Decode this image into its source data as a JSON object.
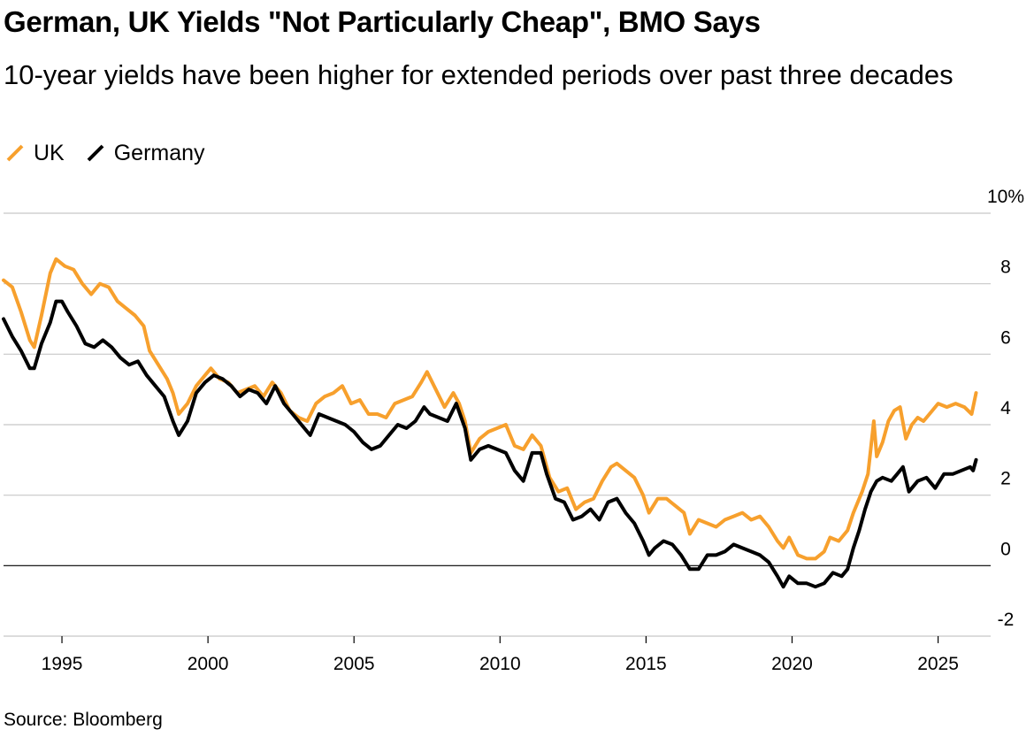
{
  "header": {
    "title": "German, UK Yields \"Not Particularly Cheap\", BMO Says",
    "subtitle": "10-year yields have been higher for extended periods over past three decades"
  },
  "legend": [
    {
      "label": "UK",
      "color": "#f7a02d"
    },
    {
      "label": "Germany",
      "color": "#000000"
    }
  ],
  "footer": {
    "source": "Source: Bloomberg"
  },
  "chart_data": {
    "type": "line",
    "title": "German, UK Yields \"Not Particularly Cheap\", BMO Says",
    "xlabel": "",
    "ylabel": "",
    "xlim": [
      1993,
      2026.8
    ],
    "ylim": [
      -2,
      10
    ],
    "y_ticks": [
      {
        "value": 10,
        "label": "10%"
      },
      {
        "value": 8,
        "label": "8"
      },
      {
        "value": 6,
        "label": "6"
      },
      {
        "value": 4,
        "label": "4"
      },
      {
        "value": 2,
        "label": "2"
      },
      {
        "value": 0,
        "label": "0"
      },
      {
        "value": -2,
        "label": "-2"
      }
    ],
    "x_ticks": [
      {
        "value": 1995,
        "label": "1995"
      },
      {
        "value": 2000,
        "label": "2000"
      },
      {
        "value": 2005,
        "label": "2005"
      },
      {
        "value": 2010,
        "label": "2010"
      },
      {
        "value": 2015,
        "label": "2015"
      },
      {
        "value": 2020,
        "label": "2020"
      },
      {
        "value": 2025,
        "label": "2025"
      }
    ],
    "grid": true,
    "legend_position": "top-left",
    "series": [
      {
        "name": "UK",
        "color": "#f7a02d",
        "points": [
          [
            1993.0,
            8.1
          ],
          [
            1993.3,
            7.9
          ],
          [
            1993.6,
            7.2
          ],
          [
            1993.9,
            6.4
          ],
          [
            1994.05,
            6.2
          ],
          [
            1994.3,
            7.1
          ],
          [
            1994.6,
            8.3
          ],
          [
            1994.8,
            8.7
          ],
          [
            1995.1,
            8.5
          ],
          [
            1995.4,
            8.4
          ],
          [
            1995.7,
            8.0
          ],
          [
            1996.0,
            7.7
          ],
          [
            1996.3,
            8.0
          ],
          [
            1996.6,
            7.9
          ],
          [
            1996.9,
            7.5
          ],
          [
            1997.2,
            7.3
          ],
          [
            1997.5,
            7.1
          ],
          [
            1997.8,
            6.8
          ],
          [
            1998.0,
            6.1
          ],
          [
            1998.3,
            5.7
          ],
          [
            1998.6,
            5.3
          ],
          [
            1998.8,
            4.9
          ],
          [
            1999.0,
            4.3
          ],
          [
            1999.3,
            4.6
          ],
          [
            1999.6,
            5.1
          ],
          [
            1999.9,
            5.4
          ],
          [
            2000.1,
            5.6
          ],
          [
            2000.4,
            5.3
          ],
          [
            2000.7,
            5.2
          ],
          [
            2001.0,
            4.9
          ],
          [
            2001.3,
            5.0
          ],
          [
            2001.6,
            5.1
          ],
          [
            2001.9,
            4.8
          ],
          [
            2002.2,
            5.2
          ],
          [
            2002.5,
            4.9
          ],
          [
            2002.8,
            4.4
          ],
          [
            2003.1,
            4.2
          ],
          [
            2003.4,
            4.1
          ],
          [
            2003.7,
            4.6
          ],
          [
            2004.0,
            4.8
          ],
          [
            2004.3,
            4.9
          ],
          [
            2004.6,
            5.1
          ],
          [
            2004.9,
            4.6
          ],
          [
            2005.2,
            4.7
          ],
          [
            2005.5,
            4.3
          ],
          [
            2005.8,
            4.3
          ],
          [
            2006.1,
            4.2
          ],
          [
            2006.4,
            4.6
          ],
          [
            2006.7,
            4.7
          ],
          [
            2007.0,
            4.8
          ],
          [
            2007.3,
            5.2
          ],
          [
            2007.5,
            5.5
          ],
          [
            2007.8,
            5.0
          ],
          [
            2008.1,
            4.5
          ],
          [
            2008.4,
            4.9
          ],
          [
            2008.6,
            4.6
          ],
          [
            2008.8,
            4.1
          ],
          [
            2009.0,
            3.2
          ],
          [
            2009.3,
            3.6
          ],
          [
            2009.6,
            3.8
          ],
          [
            2009.9,
            3.9
          ],
          [
            2010.2,
            4.0
          ],
          [
            2010.5,
            3.4
          ],
          [
            2010.8,
            3.3
          ],
          [
            2011.1,
            3.7
          ],
          [
            2011.4,
            3.4
          ],
          [
            2011.7,
            2.5
          ],
          [
            2012.0,
            2.1
          ],
          [
            2012.3,
            2.2
          ],
          [
            2012.6,
            1.6
          ],
          [
            2012.9,
            1.8
          ],
          [
            2013.2,
            1.9
          ],
          [
            2013.5,
            2.4
          ],
          [
            2013.8,
            2.8
          ],
          [
            2014.0,
            2.9
          ],
          [
            2014.3,
            2.7
          ],
          [
            2014.6,
            2.5
          ],
          [
            2014.9,
            2.0
          ],
          [
            2015.1,
            1.5
          ],
          [
            2015.4,
            1.9
          ],
          [
            2015.7,
            1.9
          ],
          [
            2016.0,
            1.7
          ],
          [
            2016.3,
            1.5
          ],
          [
            2016.5,
            0.9
          ],
          [
            2016.8,
            1.3
          ],
          [
            2017.1,
            1.2
          ],
          [
            2017.4,
            1.1
          ],
          [
            2017.7,
            1.3
          ],
          [
            2018.0,
            1.4
          ],
          [
            2018.3,
            1.5
          ],
          [
            2018.6,
            1.3
          ],
          [
            2018.9,
            1.4
          ],
          [
            2019.2,
            1.1
          ],
          [
            2019.5,
            0.7
          ],
          [
            2019.7,
            0.5
          ],
          [
            2019.9,
            0.8
          ],
          [
            2020.2,
            0.3
          ],
          [
            2020.5,
            0.2
          ],
          [
            2020.8,
            0.2
          ],
          [
            2021.1,
            0.4
          ],
          [
            2021.3,
            0.8
          ],
          [
            2021.6,
            0.7
          ],
          [
            2021.9,
            1.0
          ],
          [
            2022.1,
            1.5
          ],
          [
            2022.4,
            2.1
          ],
          [
            2022.6,
            2.6
          ],
          [
            2022.8,
            4.1
          ],
          [
            2022.9,
            3.1
          ],
          [
            2023.1,
            3.5
          ],
          [
            2023.3,
            4.1
          ],
          [
            2023.5,
            4.4
          ],
          [
            2023.7,
            4.5
          ],
          [
            2023.9,
            3.6
          ],
          [
            2024.1,
            4.0
          ],
          [
            2024.3,
            4.2
          ],
          [
            2024.5,
            4.1
          ],
          [
            2024.8,
            4.4
          ],
          [
            2025.0,
            4.6
          ],
          [
            2025.3,
            4.5
          ],
          [
            2025.6,
            4.6
          ],
          [
            2025.9,
            4.5
          ],
          [
            2026.15,
            4.3
          ],
          [
            2026.3,
            4.9
          ]
        ]
      },
      {
        "name": "Germany",
        "color": "#000000",
        "points": [
          [
            1993.0,
            7.0
          ],
          [
            1993.3,
            6.5
          ],
          [
            1993.6,
            6.1
          ],
          [
            1993.9,
            5.6
          ],
          [
            1994.05,
            5.6
          ],
          [
            1994.3,
            6.3
          ],
          [
            1994.6,
            6.9
          ],
          [
            1994.8,
            7.5
          ],
          [
            1995.0,
            7.5
          ],
          [
            1995.2,
            7.2
          ],
          [
            1995.5,
            6.8
          ],
          [
            1995.8,
            6.3
          ],
          [
            1996.1,
            6.2
          ],
          [
            1996.4,
            6.4
          ],
          [
            1996.7,
            6.2
          ],
          [
            1997.0,
            5.9
          ],
          [
            1997.3,
            5.7
          ],
          [
            1997.6,
            5.8
          ],
          [
            1997.9,
            5.4
          ],
          [
            1998.2,
            5.1
          ],
          [
            1998.5,
            4.8
          ],
          [
            1998.8,
            4.1
          ],
          [
            1999.0,
            3.7
          ],
          [
            1999.3,
            4.1
          ],
          [
            1999.6,
            4.9
          ],
          [
            1999.9,
            5.2
          ],
          [
            2000.2,
            5.4
          ],
          [
            2000.5,
            5.3
          ],
          [
            2000.8,
            5.1
          ],
          [
            2001.1,
            4.8
          ],
          [
            2001.4,
            5.0
          ],
          [
            2001.7,
            4.9
          ],
          [
            2002.0,
            4.6
          ],
          [
            2002.3,
            5.1
          ],
          [
            2002.6,
            4.6
          ],
          [
            2002.9,
            4.3
          ],
          [
            2003.2,
            4.0
          ],
          [
            2003.5,
            3.7
          ],
          [
            2003.8,
            4.3
          ],
          [
            2004.1,
            4.2
          ],
          [
            2004.4,
            4.1
          ],
          [
            2004.7,
            4.0
          ],
          [
            2005.0,
            3.8
          ],
          [
            2005.3,
            3.5
          ],
          [
            2005.6,
            3.3
          ],
          [
            2005.9,
            3.4
          ],
          [
            2006.2,
            3.7
          ],
          [
            2006.5,
            4.0
          ],
          [
            2006.8,
            3.9
          ],
          [
            2007.1,
            4.1
          ],
          [
            2007.4,
            4.5
          ],
          [
            2007.6,
            4.3
          ],
          [
            2007.9,
            4.2
          ],
          [
            2008.2,
            4.1
          ],
          [
            2008.5,
            4.6
          ],
          [
            2008.8,
            3.9
          ],
          [
            2009.0,
            3.0
          ],
          [
            2009.3,
            3.3
          ],
          [
            2009.6,
            3.4
          ],
          [
            2009.9,
            3.3
          ],
          [
            2010.2,
            3.2
          ],
          [
            2010.5,
            2.7
          ],
          [
            2010.8,
            2.4
          ],
          [
            2011.1,
            3.2
          ],
          [
            2011.4,
            3.2
          ],
          [
            2011.6,
            2.6
          ],
          [
            2011.9,
            1.9
          ],
          [
            2012.2,
            1.8
          ],
          [
            2012.5,
            1.3
          ],
          [
            2012.8,
            1.4
          ],
          [
            2013.1,
            1.6
          ],
          [
            2013.4,
            1.3
          ],
          [
            2013.7,
            1.8
          ],
          [
            2014.0,
            1.9
          ],
          [
            2014.3,
            1.5
          ],
          [
            2014.6,
            1.2
          ],
          [
            2014.9,
            0.7
          ],
          [
            2015.1,
            0.3
          ],
          [
            2015.3,
            0.5
          ],
          [
            2015.6,
            0.7
          ],
          [
            2015.9,
            0.6
          ],
          [
            2016.2,
            0.3
          ],
          [
            2016.5,
            -0.1
          ],
          [
            2016.8,
            -0.1
          ],
          [
            2017.1,
            0.3
          ],
          [
            2017.4,
            0.3
          ],
          [
            2017.7,
            0.4
          ],
          [
            2018.0,
            0.6
          ],
          [
            2018.3,
            0.5
          ],
          [
            2018.6,
            0.4
          ],
          [
            2018.9,
            0.3
          ],
          [
            2019.2,
            0.1
          ],
          [
            2019.5,
            -0.3
          ],
          [
            2019.7,
            -0.6
          ],
          [
            2019.9,
            -0.3
          ],
          [
            2020.2,
            -0.5
          ],
          [
            2020.5,
            -0.5
          ],
          [
            2020.8,
            -0.6
          ],
          [
            2021.1,
            -0.5
          ],
          [
            2021.4,
            -0.2
          ],
          [
            2021.7,
            -0.3
          ],
          [
            2021.9,
            -0.1
          ],
          [
            2022.1,
            0.5
          ],
          [
            2022.3,
            1.0
          ],
          [
            2022.5,
            1.6
          ],
          [
            2022.7,
            2.1
          ],
          [
            2022.9,
            2.4
          ],
          [
            2023.1,
            2.5
          ],
          [
            2023.4,
            2.4
          ],
          [
            2023.6,
            2.6
          ],
          [
            2023.8,
            2.8
          ],
          [
            2024.0,
            2.1
          ],
          [
            2024.3,
            2.4
          ],
          [
            2024.6,
            2.5
          ],
          [
            2024.9,
            2.2
          ],
          [
            2025.2,
            2.6
          ],
          [
            2025.5,
            2.6
          ],
          [
            2025.8,
            2.7
          ],
          [
            2026.1,
            2.8
          ],
          [
            2026.2,
            2.7
          ],
          [
            2026.3,
            3.0
          ]
        ]
      }
    ]
  }
}
